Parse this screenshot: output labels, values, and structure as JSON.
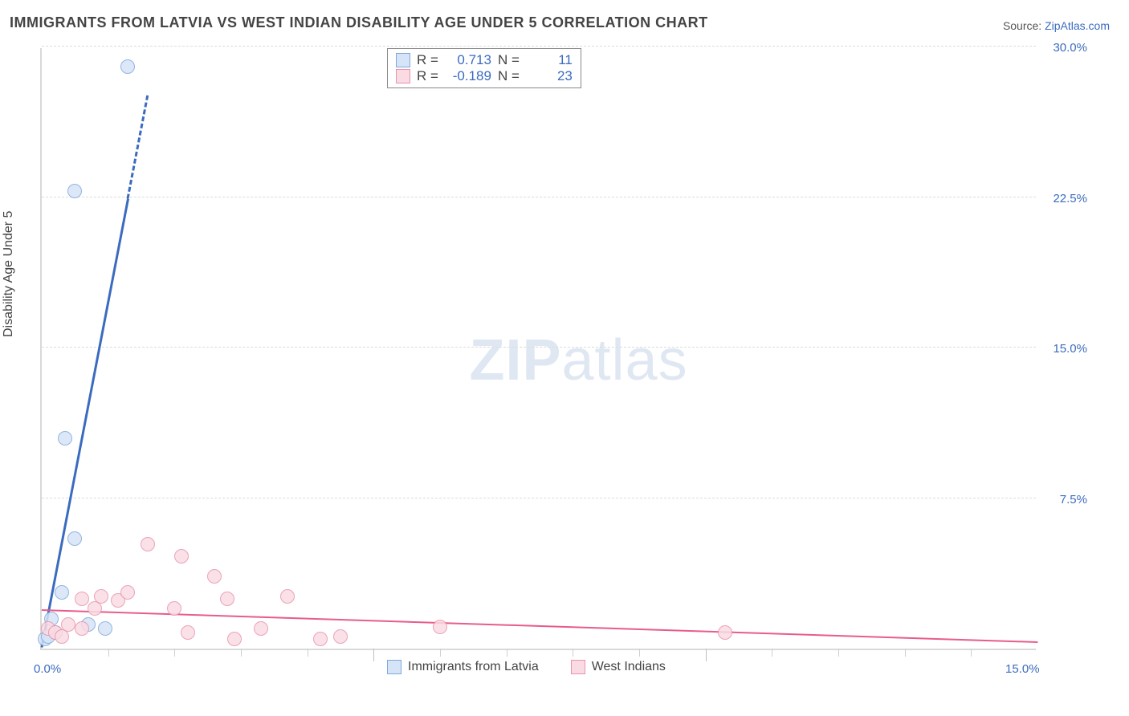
{
  "title": "IMMIGRANTS FROM LATVIA VS WEST INDIAN DISABILITY AGE UNDER 5 CORRELATION CHART",
  "source_label": "Source:",
  "source_value": "ZipAtlas.com",
  "ylabel": "Disability Age Under 5",
  "watermark_bold": "ZIP",
  "watermark_rest": "atlas",
  "chart": {
    "type": "scatter-with-regression",
    "xlim": [
      0.0,
      15.0
    ],
    "ylim": [
      0.0,
      30.0
    ],
    "ytick_step": 7.5,
    "yticks": [
      "0.0%",
      "7.5%",
      "15.0%",
      "22.5%",
      "30.0%"
    ],
    "xticks": [
      "0.0%",
      "15.0%"
    ],
    "xtick_minor_count": 14,
    "background_color": "#ffffff",
    "grid_color": "#dcdcdc",
    "axis_color": "#d9d9d9",
    "tick_color": "#3b6bbf",
    "series": [
      {
        "name": "Immigrants from Latvia",
        "color_fill": "#d6e4f7",
        "color_stroke": "#7fa8db",
        "marker_radius": 9,
        "R": "0.713",
        "N": "11",
        "trend": {
          "x0": 0.0,
          "y0": 0.0,
          "x1": 1.6,
          "y1": 27.5,
          "width": 3,
          "color": "#3b6bbf",
          "dash_after_x": 1.3
        },
        "points": [
          {
            "x": 0.05,
            "y": 0.5
          },
          {
            "x": 0.1,
            "y": 0.6
          },
          {
            "x": 0.2,
            "y": 0.8
          },
          {
            "x": 0.15,
            "y": 1.5
          },
          {
            "x": 0.3,
            "y": 2.8
          },
          {
            "x": 0.7,
            "y": 1.2
          },
          {
            "x": 0.95,
            "y": 1.0
          },
          {
            "x": 0.5,
            "y": 5.5
          },
          {
            "x": 0.35,
            "y": 10.5
          },
          {
            "x": 0.5,
            "y": 22.8
          },
          {
            "x": 1.3,
            "y": 29.0
          }
        ]
      },
      {
        "name": "West Indians",
        "color_fill": "#fadbe3",
        "color_stroke": "#e893ac",
        "marker_radius": 9,
        "R": "-0.189",
        "N": "23",
        "trend": {
          "x0": 0.0,
          "y0": 1.9,
          "x1": 15.0,
          "y1": 0.3,
          "width": 2,
          "color": "#e85c8a"
        },
        "points": [
          {
            "x": 0.1,
            "y": 1.0
          },
          {
            "x": 0.2,
            "y": 0.8
          },
          {
            "x": 0.3,
            "y": 0.6
          },
          {
            "x": 0.4,
            "y": 1.2
          },
          {
            "x": 0.6,
            "y": 1.0
          },
          {
            "x": 0.6,
            "y": 2.5
          },
          {
            "x": 0.8,
            "y": 2.0
          },
          {
            "x": 0.9,
            "y": 2.6
          },
          {
            "x": 1.15,
            "y": 2.4
          },
          {
            "x": 1.3,
            "y": 2.8
          },
          {
            "x": 1.6,
            "y": 5.2
          },
          {
            "x": 2.0,
            "y": 2.0
          },
          {
            "x": 2.2,
            "y": 0.8
          },
          {
            "x": 2.1,
            "y": 4.6
          },
          {
            "x": 2.6,
            "y": 3.6
          },
          {
            "x": 2.8,
            "y": 2.5
          },
          {
            "x": 2.9,
            "y": 0.5
          },
          {
            "x": 3.3,
            "y": 1.0
          },
          {
            "x": 3.7,
            "y": 2.6
          },
          {
            "x": 4.2,
            "y": 0.5
          },
          {
            "x": 4.5,
            "y": 0.6
          },
          {
            "x": 6.0,
            "y": 1.1
          },
          {
            "x": 10.3,
            "y": 0.8
          }
        ]
      }
    ]
  },
  "stats_labels": {
    "R": "R  =",
    "N": "N  ="
  },
  "legend_labels": [
    "Immigrants from Latvia",
    "West Indians"
  ]
}
